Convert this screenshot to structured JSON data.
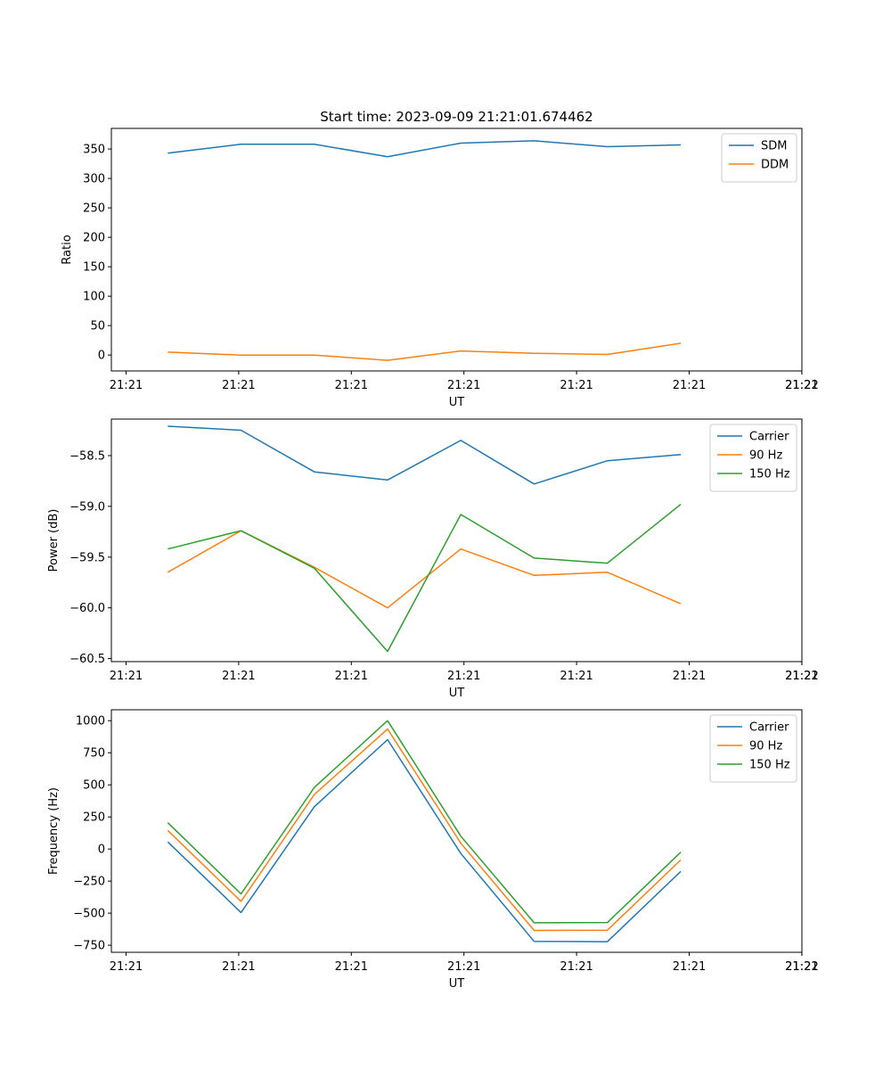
{
  "chart_data": [
    {
      "type": "line",
      "title": "Start time: 2023-09-09 21:21:01.674462",
      "xlabel": "UT",
      "ylabel": "Ratio",
      "x_tick_labels": [
        "21:21",
        "21:21",
        "21:21",
        "21:21",
        "21:21",
        "21:21",
        "21:21"
      ],
      "x_last_tick_label": "21:22",
      "xlim": [
        0,
        12.25
      ],
      "x": [
        1,
        2.3,
        3.6,
        4.9,
        6.2,
        7.5,
        8.8,
        10.1
      ],
      "ylim": [
        -27,
        385
      ],
      "y_ticks": [
        0,
        50,
        100,
        150,
        200,
        250,
        300,
        350
      ],
      "y_tick_labels": [
        "0",
        "50",
        "100",
        "150",
        "200",
        "250",
        "300",
        "350"
      ],
      "legend": "top-right",
      "series": [
        {
          "name": "SDM",
          "color": "#1f77b4",
          "values": [
            343,
            358,
            358,
            337,
            360,
            364,
            354,
            357
          ]
        },
        {
          "name": "DDM",
          "color": "#ff7f0e",
          "values": [
            5,
            0,
            0,
            -9,
            7,
            3,
            1,
            20
          ]
        }
      ]
    },
    {
      "type": "line",
      "title": "",
      "xlabel": "UT",
      "ylabel": "Power (dB)",
      "x_tick_labels": [
        "21:21",
        "21:21",
        "21:21",
        "21:21",
        "21:21",
        "21:21",
        "21:21"
      ],
      "x_last_tick_label": "21:22",
      "xlim": [
        0,
        12.25
      ],
      "x": [
        1,
        2.3,
        3.6,
        4.9,
        6.2,
        7.5,
        8.8,
        10.1
      ],
      "ylim": [
        -60.53,
        -58.14
      ],
      "y_ticks": [
        -60.5,
        -60.0,
        -59.5,
        -59.0,
        -58.5
      ],
      "y_tick_labels": [
        "−60.5",
        "−60.0",
        "−59.5",
        "−59.0",
        "−58.5"
      ],
      "legend": "top-right",
      "series": [
        {
          "name": "Carrier",
          "color": "#1f77b4",
          "values": [
            -58.21,
            -58.25,
            -58.66,
            -58.74,
            -58.35,
            -58.78,
            -58.55,
            -58.49
          ]
        },
        {
          "name": "90 Hz",
          "color": "#ff7f0e",
          "values": [
            -59.65,
            -59.24,
            -59.6,
            -60.0,
            -59.42,
            -59.68,
            -59.65,
            -59.96
          ]
        },
        {
          "name": "150 Hz",
          "color": "#2ca02c",
          "values": [
            -59.42,
            -59.24,
            -59.61,
            -60.43,
            -59.08,
            -59.51,
            -59.56,
            -58.98
          ]
        }
      ]
    },
    {
      "type": "line",
      "title": "",
      "xlabel": "UT",
      "ylabel": "Frequency (Hz)",
      "x_tick_labels": [
        "21:21",
        "21:21",
        "21:21",
        "21:21",
        "21:21",
        "21:21",
        "21:21"
      ],
      "x_last_tick_label": "21:22",
      "xlim": [
        0,
        12.25
      ],
      "x": [
        1,
        2.3,
        3.6,
        4.9,
        6.2,
        7.5,
        8.8,
        10.1
      ],
      "ylim": [
        -805,
        1085
      ],
      "y_ticks": [
        -750,
        -500,
        -250,
        0,
        250,
        500,
        750,
        1000
      ],
      "y_tick_labels": [
        "−750",
        "−500",
        "−250",
        "0",
        "250",
        "500",
        "750",
        "1000"
      ],
      "legend": "top-right",
      "series": [
        {
          "name": "Carrier",
          "color": "#1f77b4",
          "values": [
            55,
            -495,
            330,
            852,
            -35,
            -720,
            -722,
            -175
          ]
        },
        {
          "name": "90 Hz",
          "color": "#ff7f0e",
          "values": [
            145,
            -408,
            425,
            935,
            45,
            -635,
            -633,
            -85
          ]
        },
        {
          "name": "150 Hz",
          "color": "#2ca02c",
          "values": [
            205,
            -350,
            480,
            1000,
            100,
            -575,
            -573,
            -25
          ]
        }
      ]
    }
  ]
}
